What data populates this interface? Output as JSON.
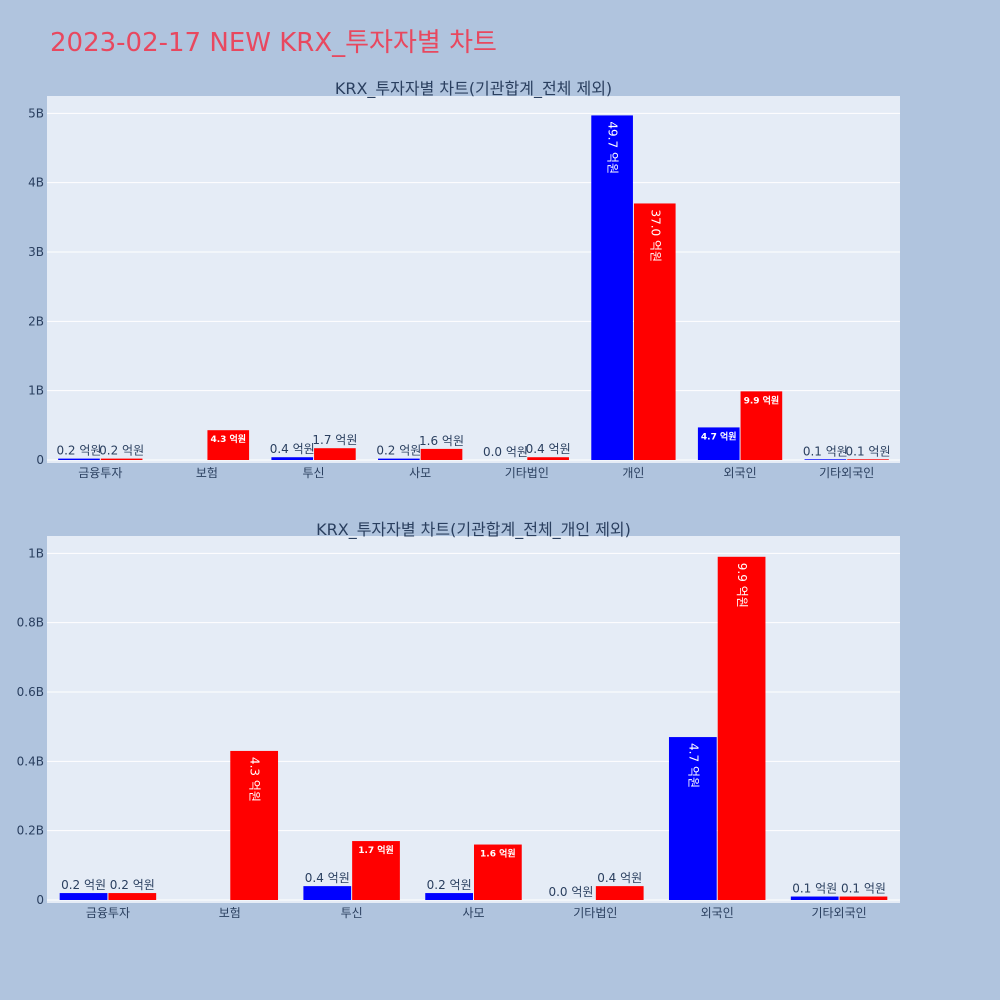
{
  "title": "2023-02-17 NEW KRX_투자자별 차트",
  "colors": {
    "background": "#b0c4de",
    "plot_bg": "#e5ecf6",
    "series_a": "#0000ff",
    "series_b": "#ff0000",
    "title": "#e8485f"
  },
  "chart_data": [
    {
      "type": "bar",
      "title": "KRX_투자자별 차트(기관합계_전체 제외)",
      "categories": [
        "금융투자",
        "보험",
        "투신",
        "사모",
        "기타법인",
        "개인",
        "외국인",
        "기타외국인"
      ],
      "series": [
        {
          "values": [
            0.02,
            0,
            0.04,
            0.02,
            0.0,
            4.97,
            0.47,
            0.01
          ],
          "labels": [
            "0.2 억원",
            "",
            "0.4 억원",
            "0.2 억원",
            "0.0 억원",
            "49.7 억원",
            "4.7 억원",
            "0.1 억원"
          ]
        },
        {
          "values": [
            0.02,
            0.43,
            0.17,
            0.16,
            0.04,
            3.7,
            0.99,
            0.01
          ],
          "labels": [
            "0.2 억원",
            "4.3 억원",
            "1.7 억원",
            "1.6 억원",
            "0.4 억원",
            "37.0 억원",
            "9.9 억원",
            "0.1 억원"
          ]
        }
      ],
      "yticks": [
        0,
        1,
        2,
        3,
        4,
        5
      ],
      "ytick_labels": [
        "0",
        "1B",
        "2B",
        "3B",
        "4B",
        "5B"
      ],
      "ylim": [
        0,
        5.25
      ],
      "grid": true
    },
    {
      "type": "bar",
      "title": "KRX_투자자별 차트(기관합계_전체_개인 제외)",
      "categories": [
        "금융투자",
        "보험",
        "투신",
        "사모",
        "기타법인",
        "외국인",
        "기타외국인"
      ],
      "series": [
        {
          "values": [
            0.02,
            0,
            0.04,
            0.02,
            0.0,
            0.47,
            0.01
          ],
          "labels": [
            "0.2 억원",
            "",
            "0.4 억원",
            "0.2 억원",
            "0.0 억원",
            "4.7 억원",
            "0.1 억원"
          ]
        },
        {
          "values": [
            0.02,
            0.43,
            0.17,
            0.16,
            0.04,
            0.99,
            0.01
          ],
          "labels": [
            "0.2 억원",
            "4.3 억원",
            "1.7 억원",
            "1.6 억원",
            "0.4 억원",
            "9.9 억원",
            "0.1 억원"
          ]
        }
      ],
      "yticks": [
        0,
        0.2,
        0.4,
        0.6,
        0.8,
        1.0
      ],
      "ytick_labels": [
        "0",
        "0.2B",
        "0.4B",
        "0.6B",
        "0.8B",
        "1B"
      ],
      "ylim": [
        0,
        1.05
      ],
      "grid": true
    }
  ]
}
